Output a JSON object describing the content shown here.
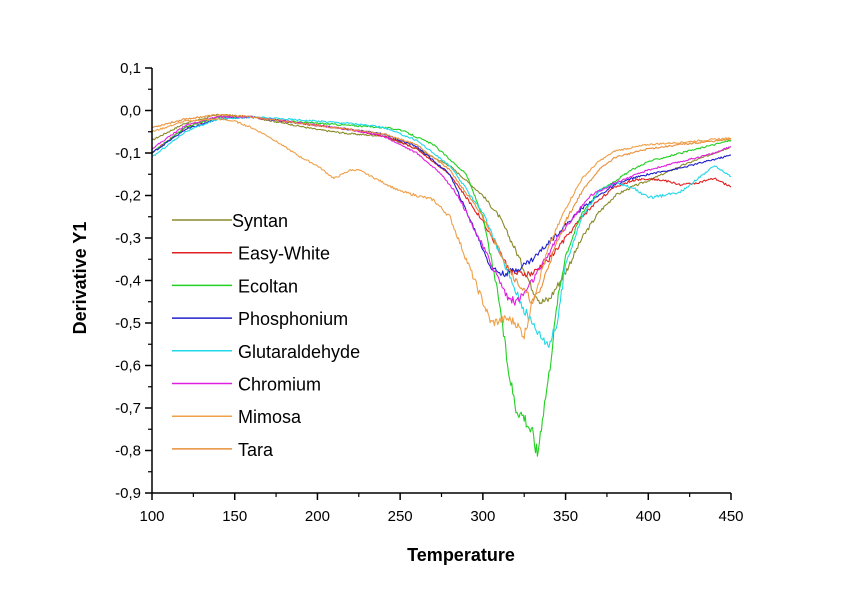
{
  "chart_data": {
    "type": "line",
    "title": "",
    "xlabel": "Temperature",
    "ylabel": "Derivative Y1",
    "xlim": [
      100,
      450
    ],
    "ylim": [
      -0.9,
      0.1
    ],
    "x_ticks": [
      100,
      150,
      200,
      250,
      300,
      350,
      400,
      450
    ],
    "x_tick_labels": [
      "100",
      "150",
      "200",
      "250",
      "300",
      "350",
      "400",
      "450"
    ],
    "y_ticks": [
      0.1,
      0.0,
      -0.1,
      -0.2,
      -0.3,
      -0.4,
      -0.5,
      -0.6,
      -0.7,
      -0.8,
      -0.9
    ],
    "y_tick_labels": [
      "0,1",
      "0,0",
      "-0,1",
      "-0,2",
      "-0,3",
      "-0,4",
      "-0,5",
      "-0,6",
      "-0,7",
      "-0,8",
      "-0,9"
    ],
    "grid": false,
    "legend_position": "left-middle",
    "series": [
      {
        "name": "Syntan",
        "color": "#8a8a2a",
        "points": [
          [
            100,
            -0.07
          ],
          [
            120,
            -0.03
          ],
          [
            140,
            -0.01
          ],
          [
            160,
            -0.015
          ],
          [
            180,
            -0.03
          ],
          [
            200,
            -0.045
          ],
          [
            220,
            -0.055
          ],
          [
            240,
            -0.06
          ],
          [
            260,
            -0.09
          ],
          [
            280,
            -0.13
          ],
          [
            300,
            -0.2
          ],
          [
            310,
            -0.25
          ],
          [
            320,
            -0.33
          ],
          [
            330,
            -0.42
          ],
          [
            335,
            -0.45
          ],
          [
            340,
            -0.445
          ],
          [
            350,
            -0.38
          ],
          [
            360,
            -0.3
          ],
          [
            370,
            -0.24
          ],
          [
            380,
            -0.2
          ],
          [
            390,
            -0.18
          ],
          [
            400,
            -0.165
          ],
          [
            420,
            -0.13
          ],
          [
            440,
            -0.1
          ],
          [
            450,
            -0.085
          ]
        ]
      },
      {
        "name": "Easy-White",
        "color": "#e02020",
        "points": [
          [
            100,
            -0.1
          ],
          [
            120,
            -0.04
          ],
          [
            140,
            -0.015
          ],
          [
            160,
            -0.015
          ],
          [
            180,
            -0.025
          ],
          [
            200,
            -0.035
          ],
          [
            220,
            -0.045
          ],
          [
            240,
            -0.06
          ],
          [
            260,
            -0.09
          ],
          [
            280,
            -0.15
          ],
          [
            300,
            -0.26
          ],
          [
            310,
            -0.33
          ],
          [
            315,
            -0.37
          ],
          [
            320,
            -0.385
          ],
          [
            330,
            -0.385
          ],
          [
            340,
            -0.35
          ],
          [
            350,
            -0.3
          ],
          [
            360,
            -0.25
          ],
          [
            370,
            -0.21
          ],
          [
            380,
            -0.18
          ],
          [
            390,
            -0.165
          ],
          [
            400,
            -0.16
          ],
          [
            410,
            -0.165
          ],
          [
            420,
            -0.175
          ],
          [
            430,
            -0.17
          ],
          [
            440,
            -0.16
          ],
          [
            450,
            -0.18
          ]
        ]
      },
      {
        "name": "Ecoltan",
        "color": "#22d022",
        "points": [
          [
            100,
            -0.1
          ],
          [
            120,
            -0.04
          ],
          [
            140,
            -0.015
          ],
          [
            160,
            -0.015
          ],
          [
            180,
            -0.025
          ],
          [
            200,
            -0.03
          ],
          [
            220,
            -0.035
          ],
          [
            240,
            -0.04
          ],
          [
            250,
            -0.045
          ],
          [
            270,
            -0.08
          ],
          [
            290,
            -0.15
          ],
          [
            300,
            -0.25
          ],
          [
            310,
            -0.45
          ],
          [
            315,
            -0.6
          ],
          [
            320,
            -0.7
          ],
          [
            325,
            -0.72
          ],
          [
            330,
            -0.76
          ],
          [
            333,
            -0.81
          ],
          [
            336,
            -0.72
          ],
          [
            340,
            -0.62
          ],
          [
            345,
            -0.45
          ],
          [
            350,
            -0.34
          ],
          [
            360,
            -0.24
          ],
          [
            370,
            -0.19
          ],
          [
            380,
            -0.165
          ],
          [
            390,
            -0.14
          ],
          [
            400,
            -0.12
          ],
          [
            420,
            -0.1
          ],
          [
            440,
            -0.08
          ],
          [
            450,
            -0.07
          ]
        ]
      },
      {
        "name": "Phosphonium",
        "color": "#2020cc",
        "points": [
          [
            100,
            -0.1
          ],
          [
            120,
            -0.045
          ],
          [
            140,
            -0.02
          ],
          [
            160,
            -0.015
          ],
          [
            180,
            -0.025
          ],
          [
            200,
            -0.035
          ],
          [
            220,
            -0.045
          ],
          [
            240,
            -0.055
          ],
          [
            260,
            -0.085
          ],
          [
            280,
            -0.15
          ],
          [
            295,
            -0.28
          ],
          [
            305,
            -0.37
          ],
          [
            312,
            -0.385
          ],
          [
            320,
            -0.375
          ],
          [
            330,
            -0.35
          ],
          [
            340,
            -0.31
          ],
          [
            350,
            -0.27
          ],
          [
            360,
            -0.23
          ],
          [
            370,
            -0.2
          ],
          [
            380,
            -0.175
          ],
          [
            390,
            -0.16
          ],
          [
            400,
            -0.15
          ],
          [
            420,
            -0.135
          ],
          [
            440,
            -0.115
          ],
          [
            450,
            -0.105
          ]
        ]
      },
      {
        "name": "Glutaraldehyde",
        "color": "#22d8e8",
        "points": [
          [
            100,
            -0.11
          ],
          [
            120,
            -0.05
          ],
          [
            140,
            -0.02
          ],
          [
            160,
            -0.015
          ],
          [
            180,
            -0.02
          ],
          [
            200,
            -0.025
          ],
          [
            220,
            -0.03
          ],
          [
            240,
            -0.04
          ],
          [
            260,
            -0.07
          ],
          [
            280,
            -0.13
          ],
          [
            300,
            -0.24
          ],
          [
            315,
            -0.38
          ],
          [
            325,
            -0.47
          ],
          [
            335,
            -0.53
          ],
          [
            340,
            -0.55
          ],
          [
            345,
            -0.5
          ],
          [
            350,
            -0.36
          ],
          [
            360,
            -0.25
          ],
          [
            370,
            -0.19
          ],
          [
            380,
            -0.17
          ],
          [
            390,
            -0.18
          ],
          [
            400,
            -0.205
          ],
          [
            410,
            -0.2
          ],
          [
            420,
            -0.19
          ],
          [
            430,
            -0.16
          ],
          [
            440,
            -0.13
          ],
          [
            450,
            -0.155
          ]
        ]
      },
      {
        "name": "Chromium",
        "color": "#e020e0",
        "points": [
          [
            100,
            -0.09
          ],
          [
            120,
            -0.035
          ],
          [
            140,
            -0.015
          ],
          [
            160,
            -0.015
          ],
          [
            180,
            -0.025
          ],
          [
            200,
            -0.035
          ],
          [
            220,
            -0.045
          ],
          [
            240,
            -0.06
          ],
          [
            260,
            -0.1
          ],
          [
            275,
            -0.15
          ],
          [
            285,
            -0.2
          ],
          [
            295,
            -0.28
          ],
          [
            305,
            -0.36
          ],
          [
            315,
            -0.44
          ],
          [
            320,
            -0.45
          ],
          [
            325,
            -0.43
          ],
          [
            335,
            -0.37
          ],
          [
            345,
            -0.3
          ],
          [
            355,
            -0.25
          ],
          [
            365,
            -0.2
          ],
          [
            380,
            -0.17
          ],
          [
            400,
            -0.14
          ],
          [
            420,
            -0.12
          ],
          [
            440,
            -0.1
          ],
          [
            450,
            -0.085
          ]
        ]
      },
      {
        "name": "Mimosa",
        "color": "#f0a048",
        "points": [
          [
            100,
            -0.05
          ],
          [
            120,
            -0.025
          ],
          [
            140,
            -0.02
          ],
          [
            150,
            -0.025
          ],
          [
            160,
            -0.04
          ],
          [
            170,
            -0.06
          ],
          [
            180,
            -0.085
          ],
          [
            190,
            -0.11
          ],
          [
            200,
            -0.13
          ],
          [
            210,
            -0.16
          ],
          [
            215,
            -0.15
          ],
          [
            220,
            -0.14
          ],
          [
            225,
            -0.14
          ],
          [
            230,
            -0.15
          ],
          [
            240,
            -0.17
          ],
          [
            250,
            -0.19
          ],
          [
            260,
            -0.2
          ],
          [
            270,
            -0.21
          ],
          [
            280,
            -0.25
          ],
          [
            290,
            -0.35
          ],
          [
            300,
            -0.45
          ],
          [
            305,
            -0.5
          ],
          [
            315,
            -0.49
          ],
          [
            320,
            -0.5
          ],
          [
            325,
            -0.53
          ],
          [
            330,
            -0.45
          ],
          [
            340,
            -0.32
          ],
          [
            350,
            -0.23
          ],
          [
            360,
            -0.16
          ],
          [
            370,
            -0.12
          ],
          [
            380,
            -0.095
          ],
          [
            400,
            -0.08
          ],
          [
            420,
            -0.075
          ],
          [
            440,
            -0.068
          ],
          [
            450,
            -0.065
          ]
        ]
      },
      {
        "name": "Tara",
        "color": "#e8903a",
        "points": [
          [
            100,
            -0.04
          ],
          [
            120,
            -0.02
          ],
          [
            140,
            -0.01
          ],
          [
            160,
            -0.015
          ],
          [
            180,
            -0.025
          ],
          [
            200,
            -0.035
          ],
          [
            220,
            -0.045
          ],
          [
            240,
            -0.055
          ],
          [
            260,
            -0.08
          ],
          [
            280,
            -0.14
          ],
          [
            300,
            -0.25
          ],
          [
            310,
            -0.33
          ],
          [
            320,
            -0.4
          ],
          [
            330,
            -0.45
          ],
          [
            335,
            -0.42
          ],
          [
            340,
            -0.36
          ],
          [
            350,
            -0.26
          ],
          [
            360,
            -0.19
          ],
          [
            370,
            -0.14
          ],
          [
            380,
            -0.11
          ],
          [
            400,
            -0.09
          ],
          [
            420,
            -0.08
          ],
          [
            440,
            -0.072
          ],
          [
            450,
            -0.068
          ]
        ]
      }
    ]
  }
}
